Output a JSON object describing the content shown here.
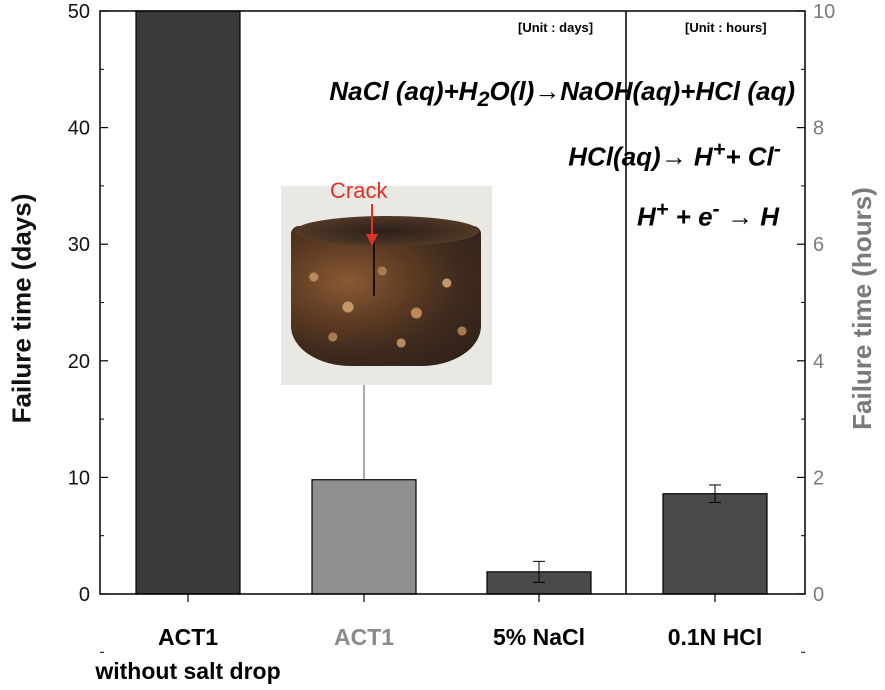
{
  "chart_data": {
    "type": "bar",
    "categories": [
      "ACT1\nwithout salt drop",
      "ACT1",
      "5% NaCl",
      "0.1N HCl"
    ],
    "category_colors": [
      "#000000",
      "#8a8a8a",
      "#000000",
      "#000000"
    ],
    "bar_colors": [
      "#3a3a3a",
      "#909090",
      "#4a4a4a",
      "#4a4a4a"
    ],
    "values": [
      50,
      9.8,
      1.9,
      1.72
    ],
    "errors": [
      null,
      null,
      0.9,
      0.15
    ],
    "value_axis": [
      "left",
      "left",
      "left",
      "right"
    ],
    "ylabel": "Failure time (days)",
    "ylabel_right": "Failure time (hours)",
    "ylim": [
      0,
      50
    ],
    "ylim_right": [
      0,
      10
    ],
    "yticks": [
      "0",
      "10",
      "20",
      "30",
      "40",
      "50"
    ],
    "yticks_right": [
      "0",
      "2",
      "4",
      "6",
      "8",
      "10"
    ],
    "annotations": {
      "unit_days": "[Unit : days]",
      "unit_hours": "[Unit : hours]",
      "photo_label": "Crack"
    }
  },
  "equations": {
    "eq1": {
      "parts": [
        "NaCl (aq)+H",
        "2",
        "O(l)→NaOH(aq)+HCl (aq)"
      ]
    },
    "eq2": {
      "parts": [
        "HCl(aq)→ H",
        "+",
        "+ Cl",
        "-"
      ]
    },
    "eq3": {
      "parts": [
        "H",
        "+",
        " + e",
        "-",
        " → H"
      ]
    }
  }
}
